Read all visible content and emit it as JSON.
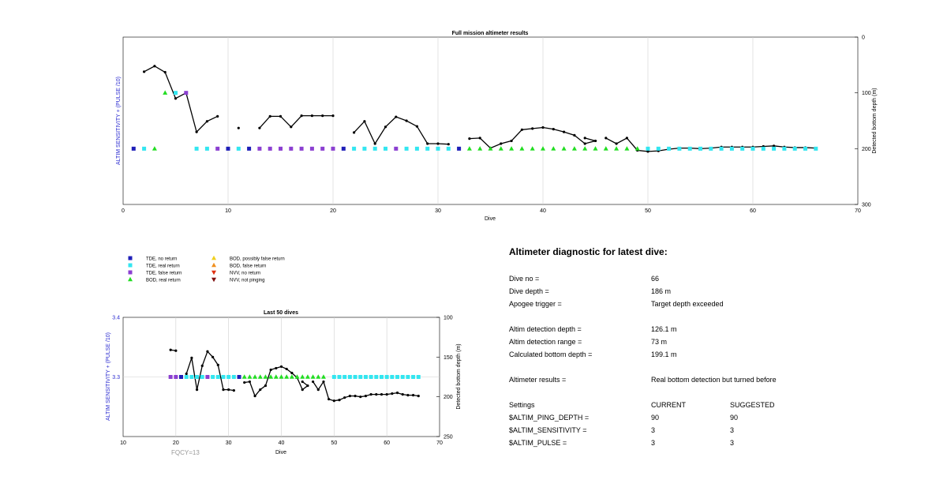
{
  "chart_data": [
    {
      "type": "scatter",
      "title": "Full mission altimeter results",
      "xlabel": "Dive",
      "ylabel": "ALTIM SENSITIVITY + (PULSE /10)",
      "ylabel_right": "Detected bottom depth (m)",
      "xlim": [
        0,
        70
      ],
      "xticks": [
        "0",
        "10",
        "20",
        "30",
        "40",
        "50",
        "60",
        "70"
      ],
      "ylim_right": [
        0,
        300
      ],
      "yticks_right": [
        "0",
        "100",
        "200",
        "300"
      ],
      "grid": true,
      "colors": {
        "grid": "#d0d0d0",
        "line": "#000000"
      },
      "series": [
        {
          "name": "TDE, no return",
          "marker": "square",
          "color": "#1f1fb8",
          "x": [
            1,
            10,
            12,
            21,
            32
          ],
          "y": [
            200,
            200,
            200,
            200,
            200
          ]
        },
        {
          "name": "TDE, real return",
          "marker": "square",
          "color": "#33e6f0",
          "x": [
            2,
            5,
            7,
            8,
            11,
            22,
            23,
            24,
            25,
            27,
            28,
            29,
            30,
            31,
            50,
            51,
            52,
            53,
            54,
            55,
            56,
            57,
            58,
            59,
            60,
            61,
            62,
            63,
            64,
            65,
            66
          ],
          "y": [
            200,
            100,
            200,
            200,
            200,
            200,
            200,
            200,
            200,
            200,
            200,
            200,
            200,
            200,
            200,
            200,
            200,
            200,
            200,
            200,
            200,
            200,
            200,
            200,
            200,
            200,
            200,
            200,
            200,
            200,
            200
          ]
        },
        {
          "name": "TDE, false return",
          "marker": "square",
          "color": "#8b3fd1",
          "x": [
            6,
            9,
            13,
            14,
            15,
            16,
            17,
            18,
            19,
            20,
            26
          ],
          "y": [
            100,
            200,
            200,
            200,
            200,
            200,
            200,
            200,
            200,
            200,
            200
          ]
        },
        {
          "name": "BOD, real return",
          "marker": "triangle-up",
          "color": "#22dd22",
          "x": [
            3,
            4,
            33,
            34,
            35,
            36,
            37,
            38,
            39,
            40,
            41,
            42,
            43,
            44,
            45,
            46,
            47,
            48,
            49
          ],
          "y": [
            200,
            100,
            200,
            200,
            200,
            200,
            200,
            200,
            200,
            200,
            200,
            200,
            200,
            200,
            200,
            200,
            200,
            200,
            200
          ]
        },
        {
          "name": "BOD, possibly false return",
          "marker": "triangle-up",
          "color": "#f0d020",
          "x": [],
          "y": []
        },
        {
          "name": "BOD, false return",
          "marker": "triangle-up",
          "color": "#f09020",
          "x": [],
          "y": []
        },
        {
          "name": "NVV, no return",
          "marker": "triangle-down",
          "color": "#e03010",
          "x": [],
          "y": []
        },
        {
          "name": "NVV, not pinging",
          "marker": "triangle-down",
          "color": "#801010",
          "x": [],
          "y": []
        }
      ],
      "depth_series": {
        "axis": "right",
        "x": [
          2,
          3,
          4,
          5,
          6,
          7,
          8,
          9,
          11,
          13,
          14,
          15,
          16,
          17,
          18,
          19,
          20,
          22,
          23,
          24,
          25,
          26,
          27,
          28,
          29,
          30,
          31,
          33,
          34,
          35,
          36,
          37,
          38,
          39,
          40,
          41,
          42,
          43,
          44,
          45,
          44,
          46,
          47,
          48,
          49,
          50,
          51,
          52,
          53,
          54,
          55,
          56,
          57,
          58,
          59,
          60,
          61,
          62,
          63,
          64,
          65,
          66
        ],
        "y": [
          62,
          52,
          63,
          110,
          100,
          170,
          151,
          142,
          163,
          163,
          142,
          142,
          161,
          141,
          141,
          141,
          141,
          171,
          151,
          191,
          161,
          143,
          150,
          160,
          191,
          191,
          192,
          182,
          181,
          199,
          191,
          186,
          166,
          164,
          162,
          165,
          170,
          176,
          191,
          186,
          181,
          181,
          191,
          181,
          203,
          205,
          204,
          201,
          199,
          199,
          200,
          199,
          197,
          197,
          197,
          197,
          196,
          195,
          197,
          198,
          198,
          199
        ]
      }
    },
    {
      "type": "scatter",
      "title": "Last 50 dives",
      "xlabel": "Dive",
      "ylabel": "ALTIM SENSITIVITY + (PULSE /10)",
      "ylabel_right": "Detected bottom depth (m)",
      "xlim": [
        10,
        70
      ],
      "xticks": [
        "10",
        "20",
        "30",
        "40",
        "50",
        "60",
        "70"
      ],
      "ylim": [
        3.2,
        3.4
      ],
      "yticks": [
        "3.4",
        "3.3"
      ],
      "ylim_right": [
        100,
        250
      ],
      "yticks_right": [
        "100",
        "150",
        "200",
        "250"
      ],
      "annotation": "FQCY=13",
      "grid": true,
      "series": [
        {
          "name": "TDE, no return",
          "marker": "square",
          "color": "#1f1fb8",
          "x": [
            21,
            32
          ],
          "y": [
            3.3,
            3.3
          ]
        },
        {
          "name": "TDE, real return",
          "marker": "square",
          "color": "#33e6f0",
          "x": [
            22,
            23,
            24,
            25,
            27,
            28,
            29,
            30,
            31,
            50,
            51,
            52,
            53,
            54,
            55,
            56,
            57,
            58,
            59,
            60,
            61,
            62,
            63,
            64,
            65,
            66
          ],
          "y": [
            3.3,
            3.3,
            3.3,
            3.3,
            3.3,
            3.3,
            3.3,
            3.3,
            3.3,
            3.3,
            3.3,
            3.3,
            3.3,
            3.3,
            3.3,
            3.3,
            3.3,
            3.3,
            3.3,
            3.3,
            3.3,
            3.3,
            3.3,
            3.3,
            3.3,
            3.3
          ]
        },
        {
          "name": "TDE, false return",
          "marker": "square",
          "color": "#8b3fd1",
          "x": [
            19,
            20,
            26
          ],
          "y": [
            3.3,
            3.3,
            3.3
          ]
        },
        {
          "name": "BOD, real return",
          "marker": "triangle-up",
          "color": "#22dd22",
          "x": [
            33,
            34,
            35,
            36,
            37,
            38,
            39,
            40,
            41,
            42,
            43,
            44,
            45,
            46,
            47,
            48
          ],
          "y": [
            3.3,
            3.3,
            3.3,
            3.3,
            3.3,
            3.3,
            3.3,
            3.3,
            3.3,
            3.3,
            3.3,
            3.3,
            3.3,
            3.3,
            3.3,
            3.3
          ]
        }
      ],
      "depth_series": {
        "axis": "right",
        "x": [
          19,
          20,
          22,
          23,
          24,
          25,
          26,
          27,
          28,
          29,
          30,
          31,
          33,
          34,
          35,
          36,
          37,
          38,
          39,
          40,
          41,
          42,
          43,
          44,
          45,
          44,
          46,
          47,
          48,
          49,
          50,
          51,
          52,
          53,
          54,
          55,
          56,
          57,
          58,
          59,
          60,
          61,
          62,
          63,
          64,
          65,
          66
        ],
        "y": [
          141,
          142,
          171,
          151,
          191,
          161,
          143,
          150,
          160,
          191,
          191,
          192,
          182,
          181,
          199,
          191,
          186,
          166,
          164,
          162,
          165,
          170,
          176,
          191,
          186,
          181,
          181,
          191,
          181,
          203,
          205,
          204,
          201,
          199,
          199,
          200,
          199,
          197,
          197,
          197,
          197,
          196,
          195,
          197,
          198,
          198,
          199
        ]
      }
    }
  ],
  "legend": [
    {
      "label": "TDE, no return",
      "marker": "square",
      "color": "#1f1fb8"
    },
    {
      "label": "TDE, real return",
      "marker": "square",
      "color": "#33e6f0"
    },
    {
      "label": "TDE, false return",
      "marker": "square",
      "color": "#8b3fd1"
    },
    {
      "label": "BOD, real return",
      "marker": "triangle-up",
      "color": "#22dd22"
    },
    {
      "label": "BOD, possibly false return",
      "marker": "triangle-up",
      "color": "#f0d020"
    },
    {
      "label": "BOD, false return",
      "marker": "triangle-up",
      "color": "#f09020"
    },
    {
      "label": "NVV, no return",
      "marker": "triangle-down",
      "color": "#e03010"
    },
    {
      "label": "NVV, not pinging",
      "marker": "triangle-down",
      "color": "#801010"
    }
  ],
  "diagnostic": {
    "title": "Altimeter diagnostic for latest dive:",
    "dive_no": {
      "label": "Dive no =",
      "value": "66"
    },
    "dive_depth": {
      "label": "Dive depth =",
      "value": "186 m"
    },
    "apogee": {
      "label": "Apogee trigger =",
      "value": "Target depth exceeded"
    },
    "detect_depth": {
      "label": "Altim detection depth =",
      "value": "126.1 m"
    },
    "detect_range": {
      "label": "Altim detection range =",
      "value": "73 m"
    },
    "calc_bottom": {
      "label": "Calculated bottom depth =",
      "value": "199.1 m"
    },
    "results": {
      "label": "Altimeter results =",
      "value": "Real bottom detection but turned before"
    },
    "settings": {
      "label": "Settings",
      "current": "CURRENT",
      "suggested": "SUGGESTED"
    },
    "ping_depth": {
      "label": "$ALTIM_PING_DEPTH =",
      "current": "90",
      "suggested": "90"
    },
    "sensitivity": {
      "label": "$ALTIM_SENSITIVITY =",
      "current": "3",
      "suggested": "3"
    },
    "pulse": {
      "label": "$ALTIM_PULSE =",
      "current": "3",
      "suggested": "3"
    }
  }
}
